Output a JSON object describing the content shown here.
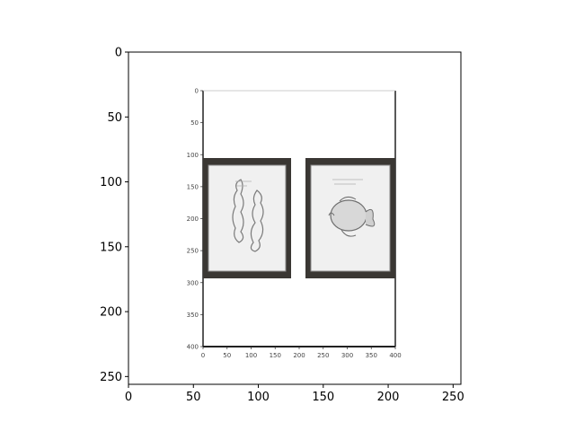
{
  "chart_data": {
    "type": "image",
    "xlim": [
      0,
      256
    ],
    "ylim": [
      256,
      0
    ],
    "x_ticks": [
      0,
      50,
      100,
      150,
      200,
      250
    ],
    "y_ticks": [
      0,
      50,
      100,
      150,
      200,
      250
    ],
    "grid": false,
    "embedded_plot": {
      "type": "image",
      "xlim": [
        0,
        400
      ],
      "ylim": [
        400,
        0
      ],
      "x_ticks": [
        0,
        50,
        100,
        150,
        200,
        250,
        300,
        350,
        400
      ],
      "y_ticks": [
        0,
        50,
        100,
        150,
        200,
        250,
        300,
        350,
        400
      ]
    },
    "colors": {
      "frame": "#3a3733",
      "mat": "#f2f2f2",
      "sketch": "#7a7a7a",
      "axis": "#000000"
    }
  }
}
